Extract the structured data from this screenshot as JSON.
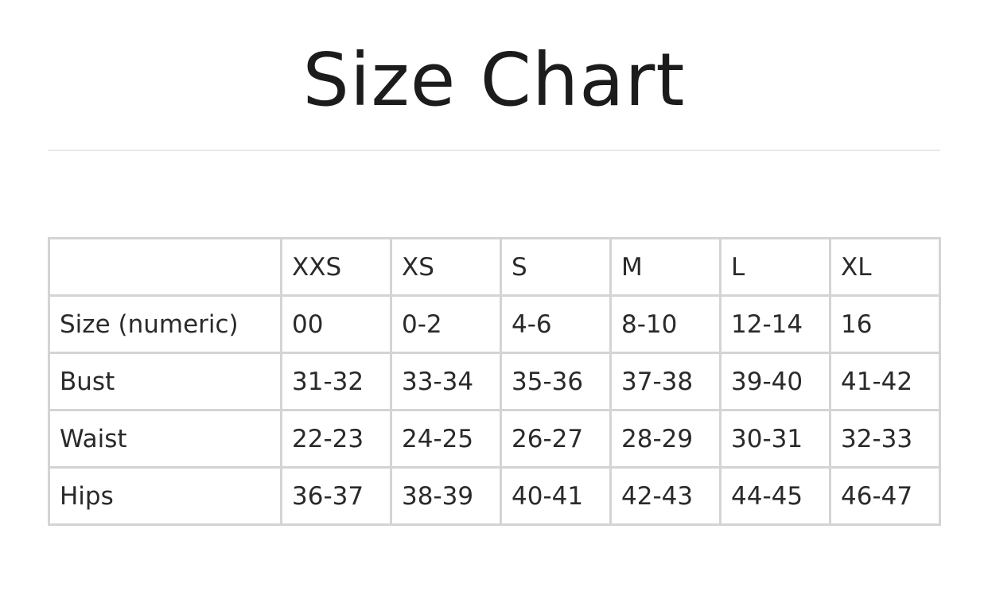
{
  "title": "Size Chart",
  "table": {
    "header": [
      "",
      "XXS",
      "XS",
      "S",
      "M",
      "L",
      "XL"
    ],
    "rows": [
      {
        "label": "Size (numeric)",
        "values": [
          "00",
          "0-2",
          "4-6",
          "8-10",
          "12-14",
          "16"
        ]
      },
      {
        "label": "Bust",
        "values": [
          "31-32",
          "33-34",
          "35-36",
          "37-38",
          "39-40",
          "41-42"
        ]
      },
      {
        "label": "Waist",
        "values": [
          "22-23",
          "24-25",
          "26-27",
          "28-29",
          "30-31",
          "32-33"
        ]
      },
      {
        "label": "Hips",
        "values": [
          "36-37",
          "38-39",
          "40-41",
          "42-43",
          "44-45",
          "46-47"
        ]
      }
    ]
  },
  "colors": {
    "text": "#1f1f1f",
    "grid": "#d4d4d4",
    "divider": "#e8e8e8"
  }
}
